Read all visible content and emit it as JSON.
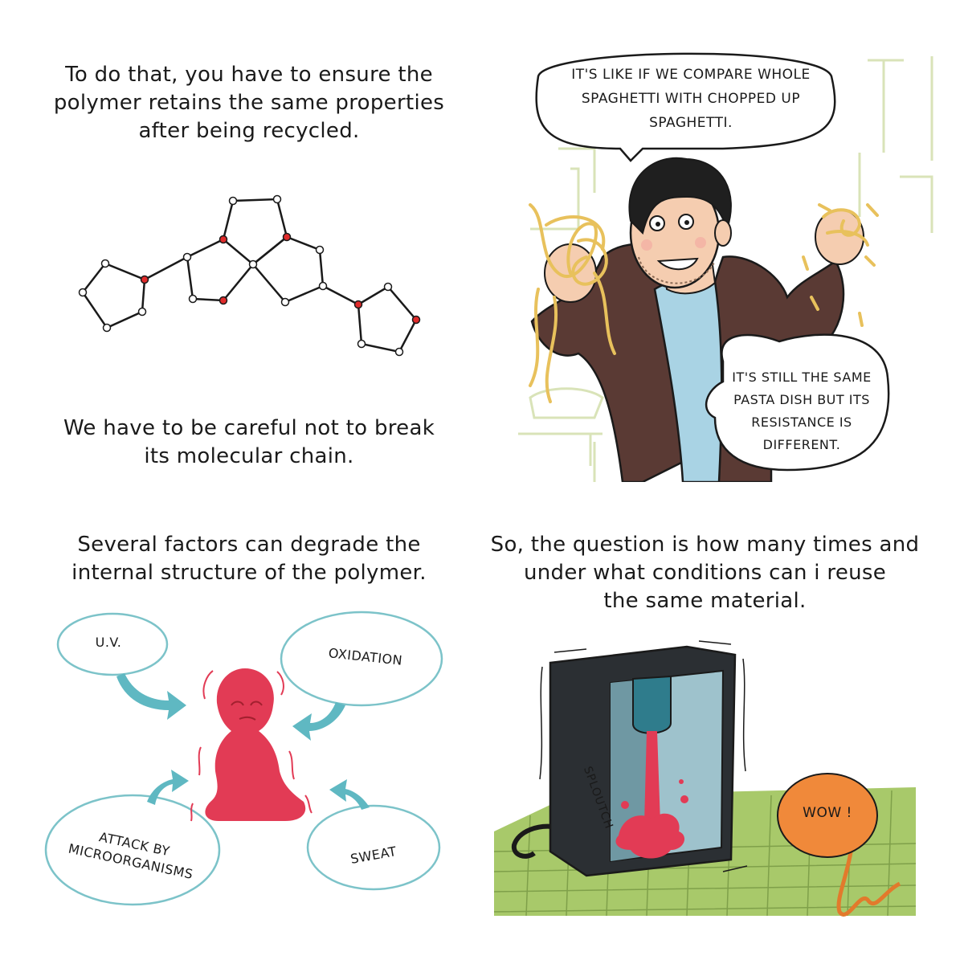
{
  "panel_1": {
    "caption_lines": [
      "To do that, you have to ensure the",
      "polymer retains the same properties",
      "after being recycled."
    ],
    "bottom_lines": [
      "We have to be careful not to break",
      "its molecular chain."
    ]
  },
  "panel_2": {
    "bubble_top_lines": [
      "IT'S LIKE IF WE COMPARE WHOLE",
      "SPAGHETTI WITH CHOPPED UP",
      "SPAGHETTI."
    ],
    "bubble_bottom_lines": [
      "IT'S STILL THE SAME",
      "PASTA DISH BUT ITS",
      "RESISTANCE IS",
      "DIFFERENT."
    ]
  },
  "panel_3": {
    "caption_lines": [
      "Several factors can degrade the",
      "internal structure of the polymer."
    ],
    "factors": {
      "uv": "U.V.",
      "oxidation": "OXIDATION",
      "attack_line1": "ATTACK BY",
      "attack_line2": "MICROORGANISMS",
      "sweat": "SWEAT"
    }
  },
  "panel_4": {
    "caption_lines": [
      "So, the question is how many times  and",
      "under what conditions can i reuse",
      "the same material."
    ],
    "sfx": "SPLOUTCH",
    "bubble": "WOW !"
  },
  "colors": {
    "bubble_outline": "#7cc3c9",
    "arrow": "#5fb8c2",
    "figure_red": "#e23b55",
    "table_green": "#a8c96a",
    "machine_dark": "#2b2f33",
    "wow_orange": "#f0893a",
    "jacket": "#5a3a34",
    "shirt": "#a9d3e4"
  }
}
